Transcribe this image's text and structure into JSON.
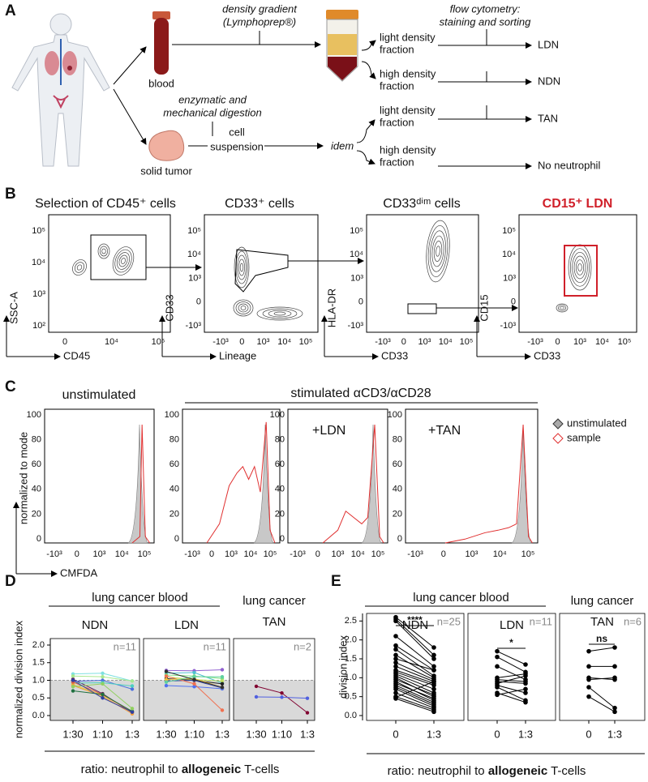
{
  "panel_a": {
    "label": "A",
    "density_gradient": [
      "density gradient",
      "(Lymphoprep®)"
    ],
    "flow_cytometry": [
      "flow cytometry:",
      "staining and sorting"
    ],
    "blood": "blood",
    "fractions": [
      [
        "light density",
        "fraction"
      ],
      [
        "high density",
        "fraction"
      ],
      [
        "light density",
        "fraction"
      ],
      [
        "high density",
        "fraction"
      ]
    ],
    "outcomes": [
      "LDN",
      "NDN",
      "TAN",
      "No neutrophil"
    ],
    "digestion": [
      "enzymatic and",
      "mechanical digestion"
    ],
    "suspension": [
      "cell",
      "suspension"
    ],
    "idem": "idem",
    "solid_tumor": "solid tumor"
  },
  "panel_b": {
    "label": "B",
    "plots": [
      {
        "title": "Selection of CD45⁺ cells",
        "y_label": "SSC-A",
        "x_label": "CD45",
        "yticks": [
          "10⁵",
          "10⁴",
          "10³",
          "10²"
        ],
        "xticks": [
          "0",
          "10⁴",
          "10⁵"
        ]
      },
      {
        "title": "CD33⁺ cells",
        "y_label": "CD33",
        "x_label": "Lineage",
        "yticks": [
          "10⁵",
          "10⁴",
          "10³",
          "0",
          "-10³"
        ],
        "xticks": [
          "-10³",
          "0",
          "10³",
          "10⁴",
          "10⁵"
        ]
      },
      {
        "title": "CD33ᵈⁱᵐ cells",
        "y_label": "HLA-DR",
        "x_label": "CD33",
        "yticks": [
          "10⁵",
          "10⁴",
          "10³",
          "0",
          "-10³"
        ],
        "xticks": [
          "-10³",
          "0",
          "10³",
          "10⁴",
          "10⁵"
        ]
      },
      {
        "title": "CD15⁺ LDN",
        "y_label": "CD15",
        "x_label": "CD33",
        "yticks": [
          "10⁵",
          "10⁴",
          "10³",
          "0",
          "-10³"
        ],
        "xticks": [
          "-10³",
          "0",
          "10³",
          "10⁴",
          "10⁵"
        ]
      }
    ]
  },
  "panel_c": {
    "label": "C",
    "titles": [
      "unstimulated",
      "stimulated αCD3/αCD28"
    ],
    "inset_labels": [
      "+LDN",
      "+TAN"
    ],
    "y_label": "normalized to mode",
    "x_label": "CMFDA",
    "yticks": [
      0,
      20,
      40,
      60,
      80,
      100
    ],
    "xticks": [
      "-10³",
      "0",
      "10³",
      "10⁴",
      "10⁵"
    ],
    "legend": [
      "unstimulated",
      "sample"
    ]
  },
  "chart_data": [
    {
      "type": "line",
      "label": "D",
      "header": "lung cancer blood",
      "y_label": "normalized division index",
      "ylim": [
        0,
        2
      ],
      "yticks": [
        {
          "value": 0,
          "label": "0.0"
        },
        {
          "value": 0.5,
          "label": "0.5"
        },
        {
          "value": 1,
          "label": "1.0"
        },
        {
          "value": 1.5,
          "label": "1.5"
        },
        {
          "value": 2,
          "label": "2.0"
        }
      ],
      "shade_below": 1,
      "x_label": [
        "ratio: neutrophil to ",
        "allogeneic",
        " T-cells"
      ],
      "facets": [
        {
          "title": [
            "NDN"
          ],
          "n_label": "n=11",
          "categories": [
            "1:30",
            "1:10",
            "1:3"
          ],
          "series": [
            {
              "color": "#5b1a5a",
              "values": [
                1.03,
                0.62,
                0.08
              ]
            },
            {
              "color": "#4a6fe0",
              "values": [
                0.97,
                1.0,
                0.75
              ]
            },
            {
              "color": "#7fe0e0",
              "values": [
                1.18,
                1.2,
                0.98
              ]
            },
            {
              "color": "#a8e890",
              "values": [
                1.12,
                1.1,
                0.98
              ]
            },
            {
              "color": "#4dd0c0",
              "values": [
                0.92,
                0.93,
                0.84
              ]
            },
            {
              "color": "#e8c840",
              "values": [
                0.88,
                0.58,
                0.12
              ]
            },
            {
              "color": "#f0a040",
              "values": [
                0.85,
                0.55,
                0.05
              ]
            },
            {
              "color": "#e06040",
              "values": [
                0.95,
                0.6,
                0.1
              ]
            },
            {
              "color": "#207040",
              "values": [
                0.7,
                0.6,
                0.12
              ]
            },
            {
              "color": "#90d060",
              "values": [
                0.82,
                0.9,
                0.2
              ]
            },
            {
              "color": "#3040a0",
              "values": [
                1.0,
                0.5,
                0.1
              ]
            }
          ]
        },
        {
          "title": [
            "LDN"
          ],
          "n_label": "n=11",
          "categories": [
            "1:30",
            "1:10",
            "1:3"
          ],
          "series": [
            {
              "color": "#9060d0",
              "values": [
                1.28,
                1.27,
                1.3
              ]
            },
            {
              "color": "#50c0d0",
              "values": [
                1.2,
                1.22,
                0.92
              ]
            },
            {
              "color": "#80e080",
              "values": [
                1.15,
                1.12,
                1.05
              ]
            },
            {
              "color": "#c0e060",
              "values": [
                1.1,
                1.02,
                0.98
              ]
            },
            {
              "color": "#202020",
              "values": [
                1.05,
                1.0,
                0.9
              ]
            },
            {
              "color": "#3040a0",
              "values": [
                0.98,
                1.0,
                0.78
              ]
            },
            {
              "color": "#5070f0",
              "values": [
                0.85,
                0.82,
                0.76
              ]
            },
            {
              "color": "#f07050",
              "values": [
                1.12,
                0.9,
                0.15
              ]
            },
            {
              "color": "#f0c040",
              "values": [
                1.02,
                1.05,
                0.8
              ]
            },
            {
              "color": "#60d0a0",
              "values": [
                0.95,
                1.1,
                1.1
              ]
            },
            {
              "color": "#303030",
              "values": [
                1.25,
                1.02,
                0.8
              ]
            }
          ]
        },
        {
          "title": [
            "lung cancer",
            "TAN"
          ],
          "n_label": "n=2",
          "categories": [
            "1:30",
            "1:10",
            "1:3"
          ],
          "series": [
            {
              "color": "#800030",
              "values": [
                0.83,
                0.64,
                0.08
              ]
            },
            {
              "color": "#5060e0",
              "values": [
                0.53,
                0.52,
                0.49
              ]
            }
          ]
        }
      ]
    },
    {
      "type": "line",
      "label": "E",
      "header": "lung cancer blood",
      "y_label": "division index",
      "color": "#000000",
      "ylim": [
        0,
        2.7
      ],
      "yticks": [
        {
          "value": 0,
          "label": "0.0"
        },
        {
          "value": 0.5,
          "label": "0.5"
        },
        {
          "value": 1,
          "label": "1.0"
        },
        {
          "value": 1.5,
          "label": "1.5"
        },
        {
          "value": 2,
          "label": "2.0"
        },
        {
          "value": 2.5,
          "label": "2.5"
        }
      ],
      "x_label": [
        "ratio: neutrophil to ",
        "allogeneic",
        " T-cells"
      ],
      "facets": [
        {
          "title": [
            "NDN"
          ],
          "n_label": "n=25",
          "significance": "****",
          "categories": [
            "0",
            "1:3"
          ],
          "series": [
            {
              "values": [
                2.6,
                1.8
              ]
            },
            {
              "values": [
                2.55,
                1.6
              ]
            },
            {
              "values": [
                2.5,
                1.5
              ]
            },
            {
              "values": [
                2.1,
                1.3
              ]
            },
            {
              "values": [
                1.85,
                1.2
              ]
            },
            {
              "values": [
                1.75,
                1.05
              ]
            },
            {
              "values": [
                1.6,
                1.0
              ]
            },
            {
              "values": [
                1.5,
                1.2
              ]
            },
            {
              "values": [
                1.4,
                0.95
              ]
            },
            {
              "values": [
                1.3,
                0.9
              ]
            },
            {
              "values": [
                1.2,
                0.85
              ]
            },
            {
              "values": [
                1.15,
                0.8
              ]
            },
            {
              "values": [
                1.1,
                0.7
              ]
            },
            {
              "values": [
                1.05,
                0.6
              ]
            },
            {
              "values": [
                1.0,
                0.5
              ]
            },
            {
              "values": [
                0.95,
                0.55
              ]
            },
            {
              "values": [
                0.9,
                0.4
              ]
            },
            {
              "values": [
                0.85,
                0.45
              ]
            },
            {
              "values": [
                0.8,
                0.35
              ]
            },
            {
              "values": [
                0.75,
                0.3
              ]
            },
            {
              "values": [
                0.7,
                0.25
              ]
            },
            {
              "values": [
                0.6,
                0.2
              ]
            },
            {
              "values": [
                0.5,
                0.15
              ]
            },
            {
              "values": [
                0.48,
                0.9
              ]
            },
            {
              "values": [
                0.45,
                0.1
              ]
            }
          ]
        },
        {
          "title": [
            "LDN"
          ],
          "n_label": "n=11",
          "significance": "*",
          "categories": [
            "0",
            "1:3"
          ],
          "series": [
            {
              "values": [
                1.7,
                1.35
              ]
            },
            {
              "values": [
                1.55,
                1.15
              ]
            },
            {
              "values": [
                1.3,
                0.95
              ]
            },
            {
              "values": [
                1.0,
                1.1
              ]
            },
            {
              "values": [
                0.95,
                0.9
              ]
            },
            {
              "values": [
                0.9,
                0.85
              ]
            },
            {
              "values": [
                0.85,
                1.05
              ]
            },
            {
              "values": [
                0.8,
                0.6
              ]
            },
            {
              "values": [
                0.75,
                0.4
              ]
            },
            {
              "values": [
                0.6,
                0.35
              ]
            },
            {
              "values": [
                0.55,
                0.7
              ]
            }
          ]
        },
        {
          "title": [
            "lung cancer",
            "TAN"
          ],
          "n_label": "n=6",
          "significance": "ns",
          "categories": [
            "0",
            "1:3"
          ],
          "series": [
            {
              "values": [
                1.7,
                1.8
              ]
            },
            {
              "values": [
                1.3,
                1.3
              ]
            },
            {
              "values": [
                1.0,
                0.95
              ]
            },
            {
              "values": [
                0.95,
                1.0
              ]
            },
            {
              "values": [
                0.75,
                0.2
              ]
            },
            {
              "values": [
                0.5,
                0.1
              ]
            }
          ]
        }
      ]
    }
  ]
}
